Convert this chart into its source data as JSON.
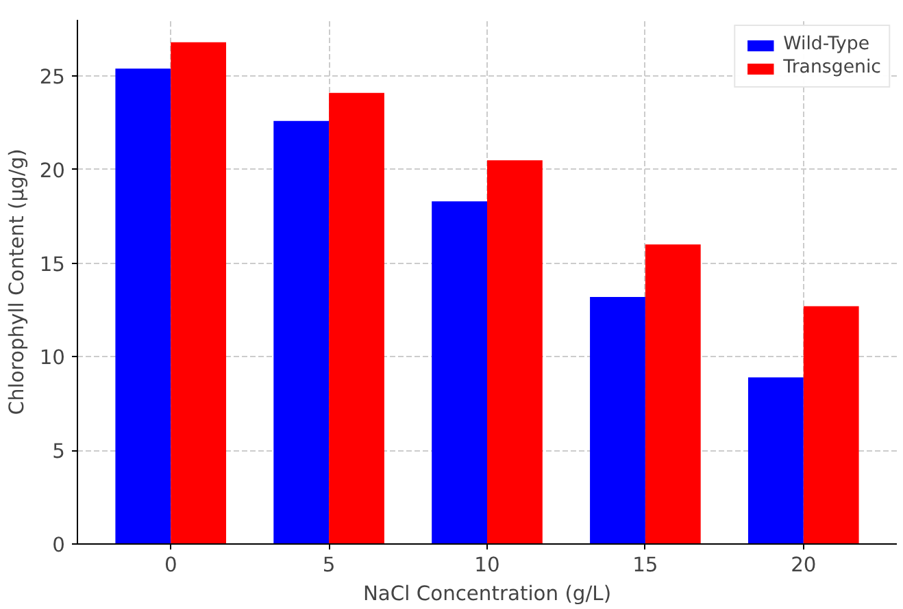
{
  "chart_data": {
    "type": "bar",
    "xlabel": "NaCl Concentration (g/L)",
    "ylabel": "Chlorophyll Content (µg/g)",
    "categories": [
      "0",
      "5",
      "10",
      "15",
      "20"
    ],
    "series": [
      {
        "name": "Wild-Type",
        "color": "#0000ff",
        "values": [
          25.4,
          22.6,
          18.3,
          13.2,
          8.9
        ]
      },
      {
        "name": "Transgenic",
        "color": "#ff0000",
        "values": [
          26.8,
          24.1,
          20.5,
          16.0,
          12.7
        ]
      }
    ],
    "ylim": [
      0,
      28
    ],
    "yticks": [
      0,
      5,
      10,
      15,
      20,
      25
    ],
    "grid": true,
    "legend": "top right"
  }
}
